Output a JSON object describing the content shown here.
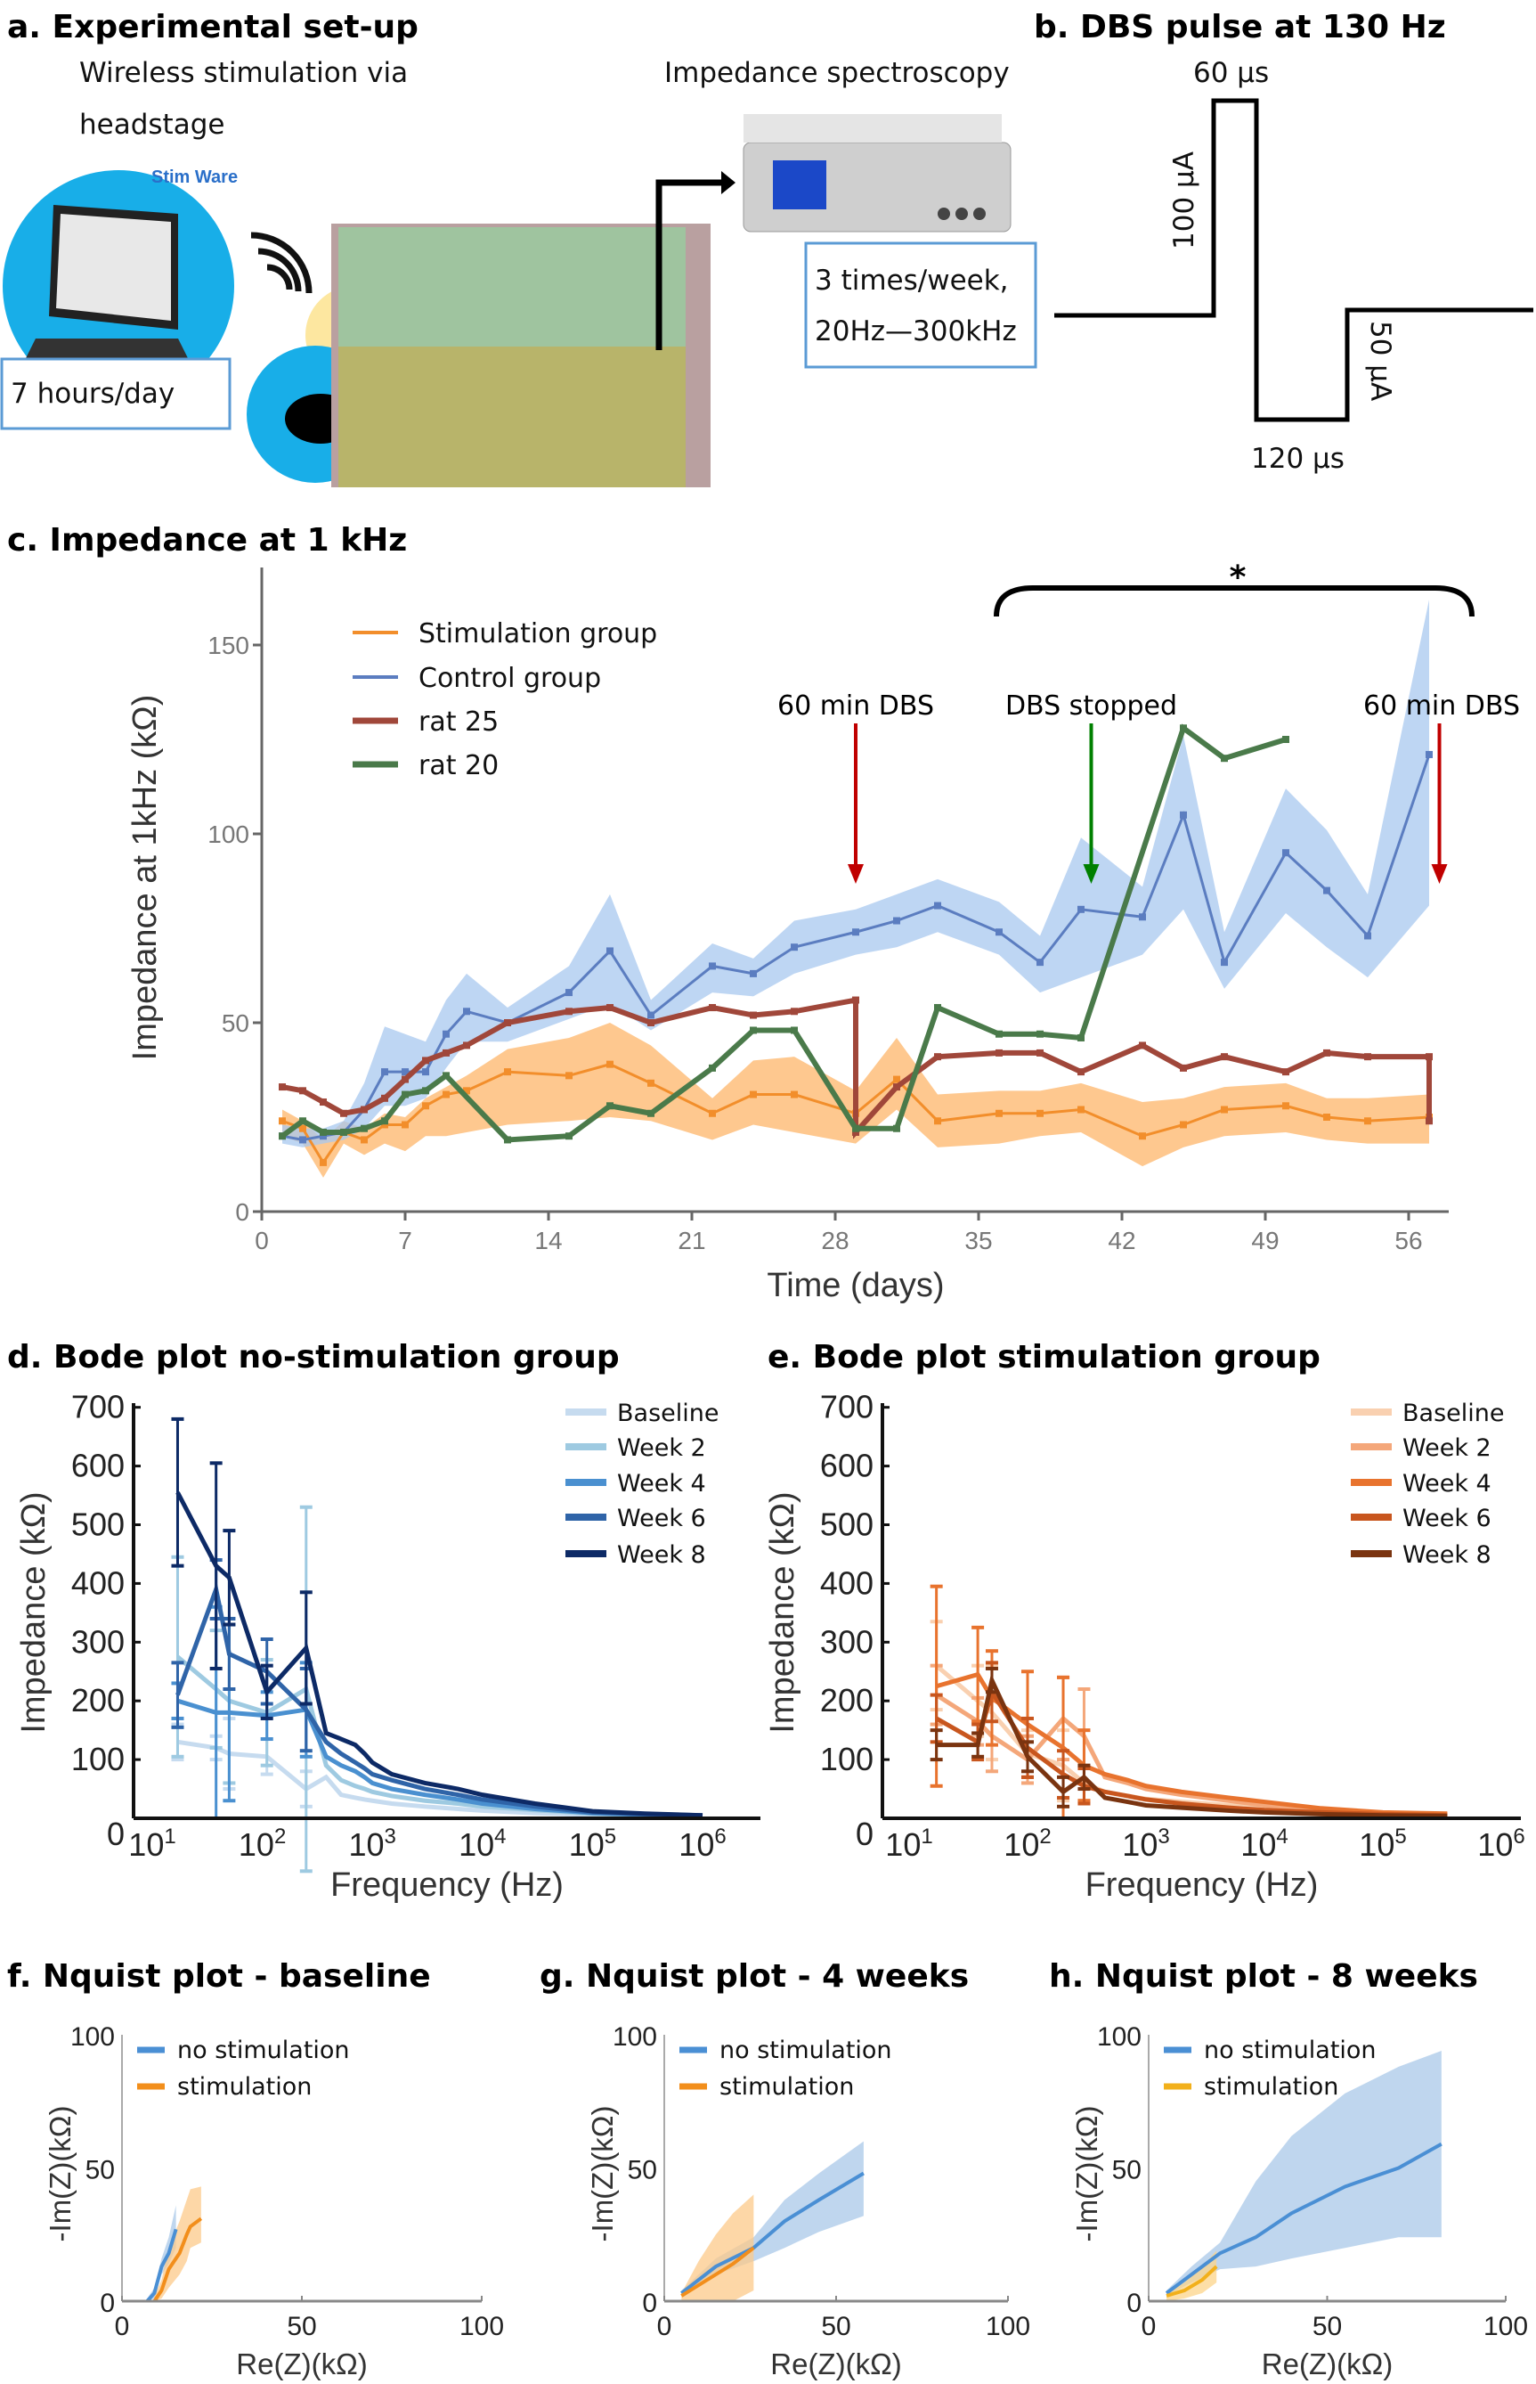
{
  "panel_a": {
    "title": "a. Experimental set-up",
    "wireless_label_line1": "Wireless stimulation via",
    "wireless_label_line2": "headstage",
    "spectroscopy_label": "Impedance spectroscopy",
    "software_logo": "Stim Ware",
    "hours_box": "7 hours/day",
    "schedule_line1": "3 times/week,",
    "schedule_line2": "20Hz—300kHz",
    "colors": {
      "circle": "#18aee8",
      "headstage_circle": "#fde7a0",
      "box_border": "#5b9bd5"
    }
  },
  "panel_b": {
    "title": "b. DBS pulse at 130 Hz",
    "pos_width": "60 µs",
    "pos_amp": "100 µA",
    "neg_amp": "50 µA",
    "neg_width": "120 µs"
  },
  "chart_data": [
    {
      "id": "c",
      "type": "line",
      "title": "c. Impedance at 1 kHz",
      "xlabel": "Time (days)",
      "ylabel": "Impedance at 1kHz (kΩ)",
      "xlim": [
        0,
        58.5
      ],
      "ylim": [
        0,
        170
      ],
      "xticks": [
        0,
        7,
        14,
        21,
        28,
        35,
        42,
        49,
        56
      ],
      "yticks": [
        0,
        50,
        100,
        150
      ],
      "legend_position": "top-left",
      "series": [
        {
          "name": "Stimulation group",
          "color": "#f28e2b",
          "band_color": "#fdb56a",
          "x": [
            1,
            2,
            3,
            4,
            5,
            6,
            7,
            8,
            9,
            10,
            12,
            15,
            17,
            19,
            22,
            24,
            26,
            29,
            31,
            33,
            36,
            38,
            40,
            43,
            45,
            47,
            50,
            52,
            54,
            57
          ],
          "y": [
            24,
            22,
            13,
            21,
            19,
            23,
            23,
            28,
            31,
            32,
            37,
            36,
            39,
            34,
            26,
            31,
            31,
            26,
            35,
            24,
            26,
            26,
            27,
            20,
            23,
            27,
            28,
            25,
            24,
            25
          ],
          "lo": [
            20,
            18,
            9,
            18,
            15,
            18,
            16,
            20,
            20,
            21,
            23,
            24,
            25,
            24,
            19,
            23,
            21,
            18,
            27,
            17,
            18,
            20,
            21,
            12,
            17,
            20,
            21,
            19,
            18,
            18
          ],
          "hi": [
            27,
            24,
            19,
            24,
            22,
            26,
            25,
            30,
            33,
            36,
            43,
            46,
            50,
            44,
            30,
            40,
            41,
            32,
            46,
            31,
            32,
            32,
            34,
            29,
            30,
            33,
            34,
            30,
            30,
            31
          ]
        },
        {
          "name": "Control group",
          "color": "#5b7dc0",
          "band_color": "#a8c8ef",
          "x": [
            1,
            2,
            3,
            4,
            5,
            6,
            7,
            8,
            9,
            10,
            12,
            15,
            17,
            19,
            22,
            24,
            26,
            29,
            31,
            33,
            36,
            38,
            40,
            43,
            45,
            47,
            50,
            52,
            54,
            57
          ],
          "y": [
            20,
            19,
            20,
            21,
            27,
            37,
            37,
            37,
            47,
            53,
            50,
            58,
            69,
            52,
            65,
            63,
            70,
            74,
            77,
            81,
            74,
            66,
            80,
            78,
            105,
            66,
            95,
            85,
            73,
            121
          ],
          "lo": [
            18,
            17,
            18,
            19,
            22,
            28,
            28,
            30,
            38,
            45,
            45,
            51,
            55,
            48,
            58,
            57,
            63,
            68,
            70,
            74,
            68,
            58,
            62,
            68,
            80,
            59,
            79,
            70,
            62,
            81
          ],
          "hi": [
            23,
            22,
            22,
            24,
            34,
            49,
            47,
            45,
            56,
            63,
            54,
            65,
            84,
            56,
            71,
            67,
            77,
            80,
            84,
            88,
            82,
            73,
            99,
            86,
            126,
            74,
            112,
            101,
            84,
            162
          ]
        },
        {
          "name": "rat 25",
          "color": "#a0473a",
          "x": [
            1,
            2,
            3,
            4,
            5,
            6,
            7,
            8,
            9,
            10,
            12,
            15,
            17,
            19,
            22,
            24,
            26,
            29,
            29,
            31,
            33,
            36,
            38,
            40,
            43,
            45,
            47,
            50,
            52,
            54,
            57,
            57
          ],
          "y": [
            33,
            32,
            29,
            26,
            27,
            30,
            35,
            40,
            42,
            44,
            50,
            53,
            54,
            50,
            54,
            52,
            53,
            56,
            21,
            33,
            41,
            42,
            42,
            37,
            44,
            38,
            41,
            37,
            42,
            41,
            41,
            24
          ]
        },
        {
          "name": "rat 20",
          "color": "#4a7a4a",
          "x": [
            1,
            2,
            3,
            4,
            5,
            6,
            7,
            8,
            9,
            12,
            15,
            17,
            19,
            22,
            24,
            26,
            29,
            31,
            33,
            36,
            38,
            40,
            45,
            47,
            50
          ],
          "y": [
            20,
            24,
            21,
            21,
            22,
            24,
            31,
            32,
            36,
            19,
            20,
            28,
            26,
            38,
            48,
            48,
            22,
            22,
            54,
            47,
            47,
            46,
            128,
            120,
            125
          ]
        }
      ],
      "annotations": [
        {
          "text": "60 min DBS",
          "day": 29,
          "color": "#c00000"
        },
        {
          "text": "DBS stopped",
          "day": 40.5,
          "color": "#008000"
        },
        {
          "text": "60 min DBS",
          "day": 57.5,
          "color": "#c00000"
        }
      ],
      "significance": {
        "text": "*",
        "from_day": 35,
        "to_day": 57
      }
    },
    {
      "id": "d",
      "type": "line",
      "title": "d. Bode plot no-stimulation group",
      "xlabel": "Frequency (Hz)",
      "ylabel": "Impedance  (kΩ)",
      "xscale": "log",
      "xlim": [
        10,
        3500000
      ],
      "ylim": [
        0,
        700
      ],
      "xticks": [
        "10^1",
        "10^2",
        "10^3",
        "10^4",
        "10^5",
        "10^6"
      ],
      "yticks": [
        0,
        100,
        200,
        300,
        400,
        500,
        600,
        700
      ],
      "legend_position": "top-right",
      "x": [
        17,
        38,
        50,
        110,
        250,
        380,
        520,
        700,
        850,
        1000,
        1500,
        3000,
        6000,
        10000,
        30000,
        100000,
        300000,
        1000000
      ],
      "series": [
        {
          "name": "Baseline",
          "color": "#c6dbef",
          "y": [
            130,
            120,
            110,
            105,
            50,
            70,
            40,
            35,
            32,
            30,
            25,
            20,
            16,
            13,
            9,
            6,
            4,
            3
          ],
          "err": [
            30,
            20,
            60,
            30,
            30
          ]
        },
        {
          "name": "Week 2",
          "color": "#9ecae1",
          "y": [
            275,
            220,
            200,
            180,
            220,
            90,
            65,
            55,
            50,
            45,
            38,
            30,
            25,
            20,
            14,
            8,
            5,
            4
          ],
          "err": [
            170,
            100,
            140,
            90,
            310
          ]
        },
        {
          "name": "Week 4",
          "color": "#4a90d0",
          "y": [
            200,
            180,
            180,
            175,
            185,
            105,
            90,
            80,
            70,
            60,
            50,
            40,
            32,
            25,
            16,
            9,
            6,
            4
          ],
          "err": [
            30,
            180,
            150,
            40,
            80
          ]
        },
        {
          "name": "Week 6",
          "color": "#2f64a8",
          "y": [
            210,
            390,
            280,
            250,
            185,
            130,
            110,
            95,
            85,
            75,
            65,
            50,
            40,
            32,
            20,
            10,
            7,
            5
          ],
          "err": [
            55,
            50,
            60,
            55,
            70
          ]
        },
        {
          "name": "Week 8",
          "color": "#0d2a66",
          "y": [
            555,
            430,
            410,
            215,
            290,
            145,
            135,
            125,
            110,
            95,
            75,
            60,
            50,
            40,
            25,
            12,
            8,
            5
          ],
          "err": [
            125,
            175,
            80,
            45,
            95
          ]
        }
      ]
    },
    {
      "id": "e",
      "type": "line",
      "title": "e. Bode plot stimulation group",
      "xlabel": "Frequency (Hz)",
      "ylabel": "Impedance  (kΩ)",
      "xscale": "log",
      "xlim": [
        10,
        1000000
      ],
      "ylim": [
        0,
        700
      ],
      "xticks": [
        "10^1",
        "10^2",
        "10^3",
        "10^4",
        "10^5",
        "10^6"
      ],
      "yticks": [
        0,
        100,
        200,
        300,
        400,
        500,
        600,
        700
      ],
      "legend_position": "top-right",
      "x": [
        17,
        38,
        50,
        100,
        200,
        300,
        450,
        700,
        1000,
        2000,
        5000,
        10000,
        30000,
        100000,
        350000
      ],
      "series": [
        {
          "name": "Baseline",
          "color": "#f9d0b0",
          "y": [
            260,
            200,
            180,
            110,
            90,
            60,
            45,
            38,
            33,
            28,
            22,
            18,
            12,
            8,
            6
          ],
          "err": [
            75,
            60,
            80,
            40,
            60,
            30
          ]
        },
        {
          "name": "Week 2",
          "color": "#f4a77a",
          "y": [
            210,
            165,
            140,
            100,
            170,
            140,
            70,
            60,
            50,
            40,
            30,
            22,
            14,
            9,
            7
          ],
          "err": [
            50,
            40,
            60,
            40,
            70,
            80
          ]
        },
        {
          "name": "Week 4",
          "color": "#e8732e",
          "y": [
            225,
            245,
            205,
            160,
            120,
            90,
            75,
            65,
            55,
            45,
            35,
            28,
            17,
            10,
            8
          ],
          "err": [
            170,
            80,
            80,
            90,
            120,
            60
          ]
        },
        {
          "name": "Week 6",
          "color": "#c8561e",
          "y": [
            170,
            130,
            215,
            120,
            75,
            55,
            45,
            38,
            32,
            25,
            18,
            14,
            10,
            7,
            5
          ],
          "err": [
            40,
            30,
            50,
            50,
            40,
            30
          ]
        },
        {
          "name": "Week 8",
          "color": "#7a3410",
          "y": [
            125,
            125,
            235,
            105,
            45,
            70,
            35,
            28,
            22,
            18,
            13,
            10,
            7,
            5,
            4
          ],
          "err": [
            25,
            20,
            20,
            25,
            25,
            20
          ]
        }
      ]
    },
    {
      "id": "f",
      "type": "line",
      "title": "f. Nquist plot - baseline",
      "xlabel": "Re(Z)(kΩ)",
      "ylabel": "-Im(Z)(kΩ)",
      "xlim": [
        0,
        100
      ],
      "ylim": [
        0,
        100
      ],
      "xticks": [
        0,
        50,
        100
      ],
      "yticks": [
        0,
        50,
        100
      ],
      "legend_position": "top-left",
      "series": [
        {
          "name": "no stimulation",
          "color": "#4a8fd4",
          "band_color": "#a9c8e8",
          "x": [
            7,
            9,
            11,
            13,
            15
          ],
          "y": [
            0,
            3,
            13,
            18,
            27
          ],
          "lo": [
            0,
            1,
            10,
            14,
            20
          ],
          "hi": [
            1,
            5,
            16,
            24,
            36
          ]
        },
        {
          "name": "stimulation",
          "color": "#f28e1b",
          "band_color": "#fcc98a",
          "x": [
            9,
            11,
            13,
            16,
            18,
            19,
            22
          ],
          "y": [
            0,
            4,
            12,
            18,
            25,
            28,
            31
          ],
          "lo": [
            0,
            1,
            5,
            10,
            15,
            20,
            22
          ],
          "hi": [
            2,
            8,
            20,
            30,
            38,
            42,
            43
          ]
        }
      ]
    },
    {
      "id": "g",
      "type": "line",
      "title": "g. Nquist plot - 4 weeks",
      "xlabel": "Re(Z)(kΩ)",
      "ylabel": "-Im(Z)(kΩ)",
      "xlim": [
        0,
        100
      ],
      "ylim": [
        0,
        100
      ],
      "xticks": [
        0,
        50,
        100
      ],
      "yticks": [
        0,
        50,
        100
      ],
      "legend_position": "top-left",
      "series": [
        {
          "name": "no stimulation",
          "color": "#4a8fd4",
          "band_color": "#a9c8e8",
          "x": [
            5,
            15,
            26,
            35,
            45,
            58
          ],
          "y": [
            3,
            13,
            20,
            30,
            38,
            48
          ],
          "lo": [
            2,
            10,
            15,
            20,
            26,
            32
          ],
          "hi": [
            4,
            16,
            24,
            38,
            48,
            60
          ]
        },
        {
          "name": "stimulation",
          "color": "#f28e1b",
          "band_color": "#fcc98a",
          "x": [
            5,
            10,
            15,
            20,
            26
          ],
          "y": [
            2,
            6,
            10,
            14,
            20
          ],
          "lo": [
            0,
            0,
            0,
            0,
            4
          ],
          "hi": [
            3,
            15,
            25,
            33,
            40
          ]
        }
      ]
    },
    {
      "id": "h",
      "type": "line",
      "title": "h. Nquist plot - 8 weeks",
      "xlabel": "Re(Z)(kΩ)",
      "ylabel": "-Im(Z)(kΩ)",
      "xlim": [
        0,
        100
      ],
      "ylim": [
        0,
        100
      ],
      "xticks": [
        0,
        50,
        100
      ],
      "yticks": [
        0,
        50,
        100
      ],
      "legend_position": "top-left",
      "series": [
        {
          "name": "no stimulation",
          "color": "#4a8fd4",
          "band_color": "#a9c8e8",
          "x": [
            5,
            12,
            20,
            30,
            40,
            55,
            70,
            82
          ],
          "y": [
            3,
            10,
            18,
            24,
            33,
            43,
            50,
            59
          ],
          "lo": [
            2,
            7,
            12,
            13,
            16,
            20,
            24,
            24
          ],
          "hi": [
            4,
            13,
            22,
            45,
            62,
            78,
            88,
            94
          ]
        },
        {
          "name": "stimulation",
          "color": "#f2b01b",
          "band_color": "#fcd48a",
          "x": [
            5,
            10,
            15,
            19
          ],
          "y": [
            2,
            4,
            8,
            13
          ],
          "lo": [
            0,
            1,
            3,
            7
          ],
          "hi": [
            3,
            7,
            13,
            19
          ]
        }
      ]
    }
  ]
}
